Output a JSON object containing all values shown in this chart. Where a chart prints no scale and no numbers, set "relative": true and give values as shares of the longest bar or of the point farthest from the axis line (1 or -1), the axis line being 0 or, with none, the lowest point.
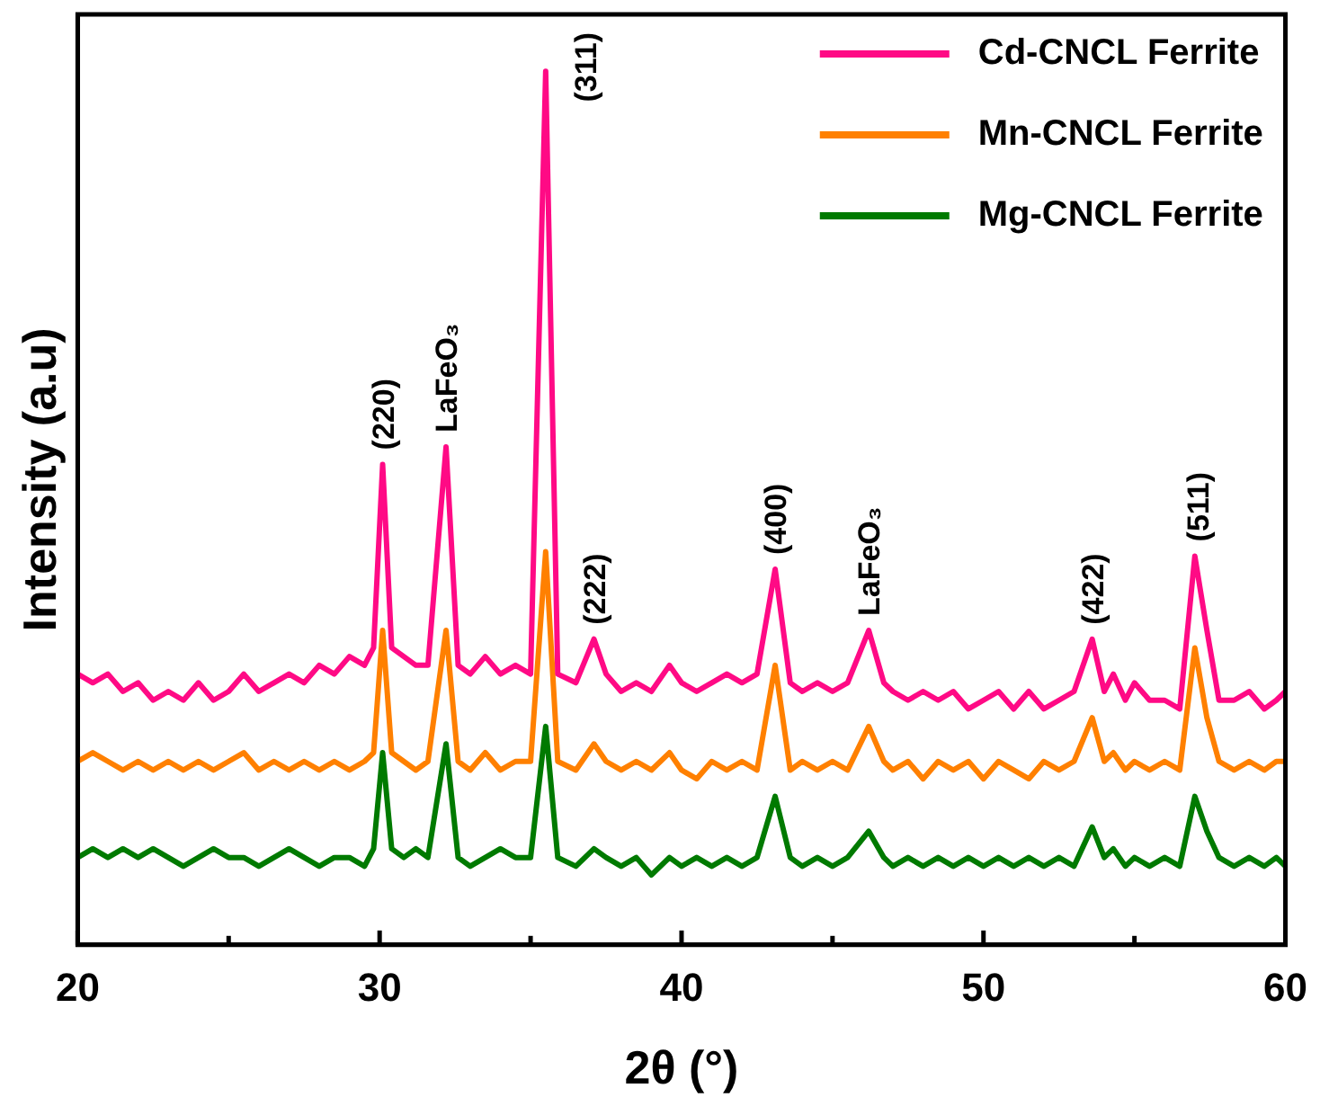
{
  "chart_data": {
    "type": "line",
    "relative": true,
    "xlabel": "2θ (°)",
    "ylabel": "Intensity (a.u)",
    "legend": "top right",
    "grid": false,
    "tick_labels": "x",
    "marker": "none",
    "line_style": "solid",
    "xlim": [
      20,
      60
    ],
    "xticks": [
      20,
      {
        "value": 25,
        "label": null
      },
      30,
      {
        "value": 35,
        "label": null
      },
      40,
      {
        "value": 45,
        "label": null
      },
      50,
      {
        "value": 55,
        "label": null
      },
      60
    ],
    "x": [
      20,
      20.5,
      21,
      21.5,
      22,
      22.5,
      23,
      23.5,
      24,
      24.5,
      25,
      25.5,
      26,
      26.5,
      27,
      27.5,
      28,
      28.5,
      29,
      29.5,
      29.8,
      30.1,
      30.4,
      30.8,
      31.2,
      31.6,
      32.2,
      32.6,
      33,
      33.5,
      34,
      34.5,
      35,
      35.5,
      35.9,
      36.5,
      37.1,
      37.5,
      38,
      38.5,
      39,
      39.6,
      40,
      40.5,
      41,
      41.5,
      42,
      42.5,
      43.1,
      43.6,
      44,
      44.5,
      45,
      45.5,
      46.2,
      46.7,
      47,
      47.5,
      48,
      48.5,
      49,
      49.5,
      50,
      50.5,
      51,
      51.5,
      52,
      52.5,
      53,
      53.6,
      54,
      54.3,
      54.7,
      55,
      55.5,
      56,
      56.5,
      57,
      57.4,
      57.8,
      58.3,
      58.8,
      59.3,
      59.7,
      60
    ],
    "series": [
      {
        "name": "Cd-CNCL Ferrite",
        "color": "#ff0a85",
        "values": [
          0.31,
          0.3,
          0.31,
          0.29,
          0.3,
          0.28,
          0.29,
          0.28,
          0.3,
          0.28,
          0.29,
          0.31,
          0.29,
          0.3,
          0.31,
          0.3,
          0.32,
          0.31,
          0.33,
          0.32,
          0.34,
          0.55,
          0.34,
          0.33,
          0.32,
          0.32,
          0.57,
          0.32,
          0.31,
          0.33,
          0.31,
          0.32,
          0.31,
          1.0,
          0.31,
          0.3,
          0.35,
          0.31,
          0.29,
          0.3,
          0.29,
          0.32,
          0.3,
          0.29,
          0.3,
          0.31,
          0.3,
          0.31,
          0.43,
          0.3,
          0.29,
          0.3,
          0.29,
          0.3,
          0.36,
          0.3,
          0.29,
          0.28,
          0.29,
          0.28,
          0.29,
          0.27,
          0.28,
          0.29,
          0.27,
          0.29,
          0.27,
          0.28,
          0.29,
          0.35,
          0.29,
          0.31,
          0.28,
          0.3,
          0.28,
          0.28,
          0.27,
          0.445,
          0.36,
          0.28,
          0.28,
          0.29,
          0.27,
          0.28,
          0.29
        ]
      },
      {
        "name": "Mn-CNCL Ferrite",
        "color": "#ff8000",
        "values": [
          0.21,
          0.22,
          0.21,
          0.2,
          0.21,
          0.2,
          0.21,
          0.2,
          0.21,
          0.2,
          0.21,
          0.22,
          0.2,
          0.21,
          0.2,
          0.21,
          0.2,
          0.21,
          0.2,
          0.21,
          0.22,
          0.36,
          0.22,
          0.21,
          0.2,
          0.21,
          0.36,
          0.21,
          0.2,
          0.22,
          0.2,
          0.21,
          0.21,
          0.45,
          0.21,
          0.2,
          0.23,
          0.21,
          0.2,
          0.21,
          0.2,
          0.22,
          0.2,
          0.19,
          0.21,
          0.2,
          0.21,
          0.2,
          0.32,
          0.2,
          0.21,
          0.2,
          0.21,
          0.2,
          0.25,
          0.21,
          0.2,
          0.21,
          0.19,
          0.21,
          0.2,
          0.21,
          0.19,
          0.21,
          0.2,
          0.19,
          0.21,
          0.2,
          0.21,
          0.26,
          0.21,
          0.22,
          0.2,
          0.21,
          0.2,
          0.21,
          0.2,
          0.34,
          0.26,
          0.21,
          0.2,
          0.21,
          0.2,
          0.21,
          0.21
        ]
      },
      {
        "name": "Mg-CNCL Ferrite",
        "color": "#007a00",
        "values": [
          0.1,
          0.11,
          0.1,
          0.11,
          0.1,
          0.11,
          0.1,
          0.09,
          0.1,
          0.11,
          0.1,
          0.1,
          0.09,
          0.1,
          0.11,
          0.1,
          0.09,
          0.1,
          0.1,
          0.09,
          0.11,
          0.22,
          0.11,
          0.1,
          0.11,
          0.1,
          0.23,
          0.1,
          0.09,
          0.1,
          0.11,
          0.1,
          0.1,
          0.25,
          0.1,
          0.09,
          0.11,
          0.1,
          0.09,
          0.1,
          0.08,
          0.1,
          0.09,
          0.1,
          0.09,
          0.1,
          0.09,
          0.1,
          0.17,
          0.1,
          0.09,
          0.1,
          0.09,
          0.1,
          0.13,
          0.1,
          0.09,
          0.1,
          0.09,
          0.1,
          0.09,
          0.1,
          0.09,
          0.1,
          0.09,
          0.1,
          0.09,
          0.1,
          0.09,
          0.135,
          0.1,
          0.11,
          0.09,
          0.1,
          0.09,
          0.1,
          0.09,
          0.17,
          0.13,
          0.1,
          0.09,
          0.1,
          0.09,
          0.1,
          0.09
        ]
      }
    ],
    "annotations": [
      {
        "text": "(220)",
        "x": 30.1,
        "y": 0.55
      },
      {
        "text": "LaFeO₃",
        "x": 32.2,
        "y": 0.57
      },
      {
        "text": "(311)",
        "x": 35.5,
        "y": 1.0
      },
      {
        "text": "(222)",
        "x": 37.1,
        "y": 0.35
      },
      {
        "text": "(400)",
        "x": 43.1,
        "y": 0.43
      },
      {
        "text": "LaFeO₃",
        "x": 46.2,
        "y": 0.36
      },
      {
        "text": "(422)",
        "x": 53.6,
        "y": 0.35
      },
      {
        "text": "(511)",
        "x": 57.1,
        "y": 0.445
      }
    ]
  }
}
